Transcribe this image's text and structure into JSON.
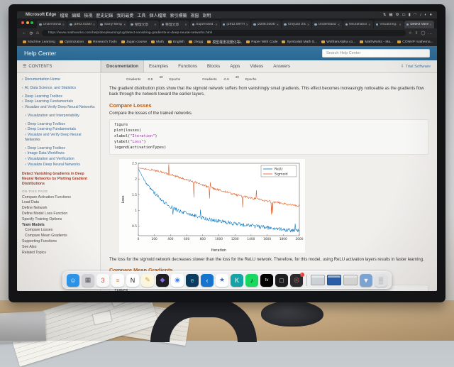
{
  "colors": {
    "mathworks_blue": "#2e6da4",
    "heading_orange": "#b85c12",
    "sidebar_link_blue": "#3c6a93",
    "current_page_red": "#a23c2a",
    "code_string_purple": "#9b2bb0",
    "matlab_blue": "#0072BD",
    "matlab_red": "#D95319"
  },
  "menu_bar": {
    "app_name": "Microsoft Edge",
    "menus": [
      "檔案",
      "編輯",
      "檢視",
      "歷史記錄",
      "我的最愛",
      "工具",
      "個人檔案",
      "索引標籤",
      "視窗",
      "說明"
    ],
    "status_icons": [
      {
        "name": "screen-mirroring-icon",
        "glyph": "⇅"
      },
      {
        "name": "keyboard-icon",
        "glyph": "▦"
      },
      {
        "name": "gear-icon",
        "glyph": "⚙"
      },
      {
        "name": "display-icon",
        "glyph": "▭"
      },
      {
        "name": "battery-icon",
        "glyph": "▮"
      },
      {
        "name": "wifi-icon",
        "glyph": "◠"
      },
      {
        "name": "volume-icon",
        "glyph": "♪"
      },
      {
        "name": "control-center-icon",
        "glyph": "◐"
      },
      {
        "name": "siri-icon",
        "glyph": "●"
      }
    ]
  },
  "tab_strip": {
    "tabs": [
      {
        "title": "Understandin...",
        "active": false
      },
      {
        "title": "[1802.01548]...",
        "active": false
      },
      {
        "title": "Samy Bengio...",
        "active": false
      },
      {
        "title": "整理文章",
        "active": false
      },
      {
        "title": "整理文章",
        "active": false
      },
      {
        "title": "Supervised Co...",
        "active": false
      },
      {
        "title": "[1912.09776]...",
        "active": false
      },
      {
        "title": "[2208.04045]...",
        "active": false
      },
      {
        "title": "Chiyuan Zhan...",
        "active": false
      },
      {
        "title": "Understandin...",
        "active": false
      },
      {
        "title": "Neurahabur W...",
        "active": false
      },
      {
        "title": "Visualizing ac...",
        "active": false
      },
      {
        "title": "Detect Vanishi...",
        "active": true
      }
    ],
    "close_glyph": "✕"
  },
  "nav_bar": {
    "back_glyph": "←",
    "refresh_glyph": "⟳",
    "home_glyph": "⌂",
    "lock_glyph": "●",
    "url": "https://www.mathworks.com/help/deeplearning/ug/detect-vanishing-gradients-in-deep-neural-networks.html",
    "right_icons": [
      {
        "name": "favorite-star-icon",
        "glyph": "☆"
      },
      {
        "name": "downloads-icon",
        "glyph": "⇩"
      },
      {
        "name": "profile-avatar-icon",
        "glyph": "◯"
      },
      {
        "name": "more-menu-icon",
        "glyph": "…"
      }
    ]
  },
  "bookmarks": [
    "Machine Learning",
    "Optimization",
    "Research Tools",
    "Japan course",
    "Math",
    "English",
    "chegg",
    "模型權重視覺化等L",
    "Paper With Code",
    "Symbolab Math S...",
    "WolframAlpha co...",
    "MathWorks - Ma...",
    "CONNP mathema...",
    "iCloud",
    "Latex",
    "Interview",
    "Algorithms and Da...",
    "Childhood",
    "Interes..."
  ],
  "help_header": {
    "title": "Help Center",
    "search_placeholder": "Search Help Center"
  },
  "toolbar": {
    "contents_label": "CONTENTS",
    "hamburger_glyph": "☰",
    "tabs": [
      "Documentation",
      "Examples",
      "Functions",
      "Blocks",
      "Apps",
      "Videos",
      "Answers"
    ],
    "active_tab": "Documentation",
    "trial_label": "Trial Software",
    "trial_icon_glyph": "⇩"
  },
  "sidebar": {
    "chevron": "‹",
    "nav_items": [
      {
        "label": "Documentation Home"
      },
      {
        "label": "AI, Data Science, and Statistics"
      },
      {
        "label": "Deep Learning Toolbox"
      },
      {
        "label": "Deep Learning Fundamentals"
      },
      {
        "label": "Visualize and Verify Deep Neural Networks"
      },
      {
        "label": "Visualization and Interpretability"
      },
      {
        "label": "Deep Learning Toolbox"
      },
      {
        "label": "Deep Learning Fundamentals"
      },
      {
        "label": "Visualize and Verify Deep Neural Networks"
      },
      {
        "label": "Deep Learning Toolbox"
      },
      {
        "label": "Image Data Workflows"
      },
      {
        "label": "Visualization and Verification"
      },
      {
        "label": "Visualize Deep Neural Networks"
      }
    ],
    "current_page": "Detect Vanishing Gradients in Deep Neural Networks by Plotting Gradient Distributions",
    "on_this_page_label": "ON THIS PAGE",
    "page_links": [
      {
        "label": "Compare Activation Functions"
      },
      {
        "label": "Load Data"
      },
      {
        "label": "Define Network"
      },
      {
        "label": "Define Model Loss Function"
      },
      {
        "label": "Specify Training Options"
      },
      {
        "label": "Train Models",
        "bold": true
      },
      {
        "label": "Compare Losses",
        "indent": true
      },
      {
        "label": "Compare Mean Gradients",
        "indent": true
      },
      {
        "label": "Supporting Functions"
      },
      {
        "label": "See Also"
      },
      {
        "label": "Related Topics"
      }
    ]
  },
  "content": {
    "figure_fragment": [
      "Gradients",
      "-0.5",
      "40",
      "Epochs",
      "Gradients",
      "-0.5",
      "40",
      "Epochs"
    ],
    "para_top": "The gradient distribution plots show that the sigmoid network suffers from vanishingly small gradients. This effect becomes increasingly noticeable as the gradients flow back through the network toward the earlier layers.",
    "heading_losses": "Compare Losses",
    "sub_losses": "Compare the losses of the trained networks.",
    "code1_lines": [
      "figure",
      "plot(losses)",
      "xlabel(\"Iteration\")",
      "ylabel(\"Loss\")",
      "legend(activationTypes)"
    ],
    "para_mid": "The loss for the sigmoid network decreases slower than the loss for the ReLU network. Therefore, for this model, using ReLU activation layers results in faster learning.",
    "heading_gradients": "Compare Mean Gradients",
    "sub_gradients": "Compare the average gradient for each layer in each training iteration.",
    "code2_lines": [
      "figure",
      "tiledlayout(\"flow\")",
      "for ii = 1:numLearnableLayers",
      "    nexttile",
      "    plot(meanGradien"
    ]
  },
  "chart_data": {
    "type": "line",
    "title": "",
    "xlabel": "Iteration",
    "ylabel": "Loss",
    "xlim": [
      0,
      2000
    ],
    "ylim": [
      0.2,
      2.5
    ],
    "xticks": [
      0,
      200,
      400,
      600,
      800,
      1000,
      1200,
      1400,
      1600,
      1800,
      2000
    ],
    "yticks": [
      0.5,
      1,
      1.5,
      2,
      2.5
    ],
    "grid": false,
    "legend_position": "northeast",
    "x": [
      0,
      100,
      200,
      300,
      400,
      500,
      600,
      700,
      800,
      900,
      1000,
      1100,
      1200,
      1300,
      1400,
      1500,
      1600,
      1700,
      1800,
      1900,
      2000
    ],
    "series": [
      {
        "name": "ReLU",
        "color": "#0072BD",
        "noise": 0.06,
        "spike": 0.45,
        "y": [
          2.32,
          1.85,
          1.55,
          1.3,
          1.12,
          1.0,
          0.9,
          0.83,
          0.77,
          0.71,
          0.66,
          0.62,
          0.58,
          0.55,
          0.52,
          0.48,
          0.45,
          0.42,
          0.4,
          0.37,
          0.35
        ]
      },
      {
        "name": "Sigmoid",
        "color": "#D95319",
        "noise": 0.035,
        "spike": 0.5,
        "y": [
          2.35,
          2.32,
          2.27,
          2.21,
          2.14,
          2.06,
          1.98,
          1.9,
          1.81,
          1.73,
          1.65,
          1.58,
          1.51,
          1.45,
          1.4,
          1.35,
          1.3,
          1.26,
          1.22,
          1.18,
          1.15
        ]
      }
    ]
  },
  "dock": {
    "icons": [
      {
        "name": "finder",
        "glyph": "☺",
        "bg": "#2b9af3",
        "fg": "#ffffff"
      },
      {
        "name": "launchpad",
        "glyph": "▦",
        "bg": "#d8d8dc",
        "fg": "#5a5a60"
      },
      {
        "name": "calendar",
        "glyph": "3",
        "bg": "#ffffff",
        "fg": "#e0483e"
      },
      {
        "name": "reminders",
        "glyph": "≡",
        "bg": "#ffffff",
        "fg": "#f09a37"
      },
      {
        "name": "notion",
        "glyph": "N",
        "bg": "#ffffff",
        "fg": "#1a1a1a"
      },
      {
        "name": "notes",
        "glyph": "✎",
        "bg": "#fbf6dd",
        "fg": "#c7a62c"
      },
      {
        "name": "obsidian",
        "glyph": "◆",
        "bg": "#1e1e23",
        "fg": "#8b6cf0"
      },
      {
        "name": "chrome",
        "glyph": "◉",
        "bg": "#ffffff",
        "fg": "#4285f4"
      },
      {
        "name": "edge",
        "glyph": "e",
        "bg": "#0c3b5e",
        "fg": "#43c6f4"
      },
      {
        "name": "vscode",
        "glyph": "‹",
        "bg": "#1574cf",
        "fg": "#ffffff"
      },
      {
        "name": "anki",
        "glyph": "★",
        "bg": "#ffffff",
        "fg": "#3b6fd6"
      },
      {
        "name": "app-k",
        "glyph": "K",
        "bg": "#17a2a6",
        "fg": "#ffffff"
      },
      {
        "name": "spotify",
        "glyph": "♪",
        "bg": "#19d85f",
        "fg": "#0c0c0c"
      },
      {
        "name": "apple-tv",
        "glyph": "tv",
        "bg": "#000000",
        "fg": "#ffffff"
      },
      {
        "name": "shortcuts",
        "glyph": "□",
        "bg": "#1d1d1f",
        "fg": "#e8e8e8"
      },
      {
        "name": "photo-booth",
        "glyph": "◎",
        "bg": "#2b2b2e",
        "fg": "#e8645a",
        "badge": "1"
      },
      {
        "sep": true
      },
      {
        "name": "minimized-window-1",
        "win": true,
        "bg": "#cdd2d7"
      },
      {
        "name": "minimized-window-2",
        "win": true,
        "bg": "#2b5fa8"
      },
      {
        "name": "minimized-window-3",
        "win": true,
        "bg": "#d7d7d5"
      },
      {
        "name": "downloads-folder",
        "glyph": "▼",
        "bg": "#7fa8d9",
        "fg": "#ffffff"
      },
      {
        "name": "trash",
        "glyph": "▒",
        "bg": "#e9eaec",
        "fg": "#9a9a9a"
      }
    ]
  }
}
